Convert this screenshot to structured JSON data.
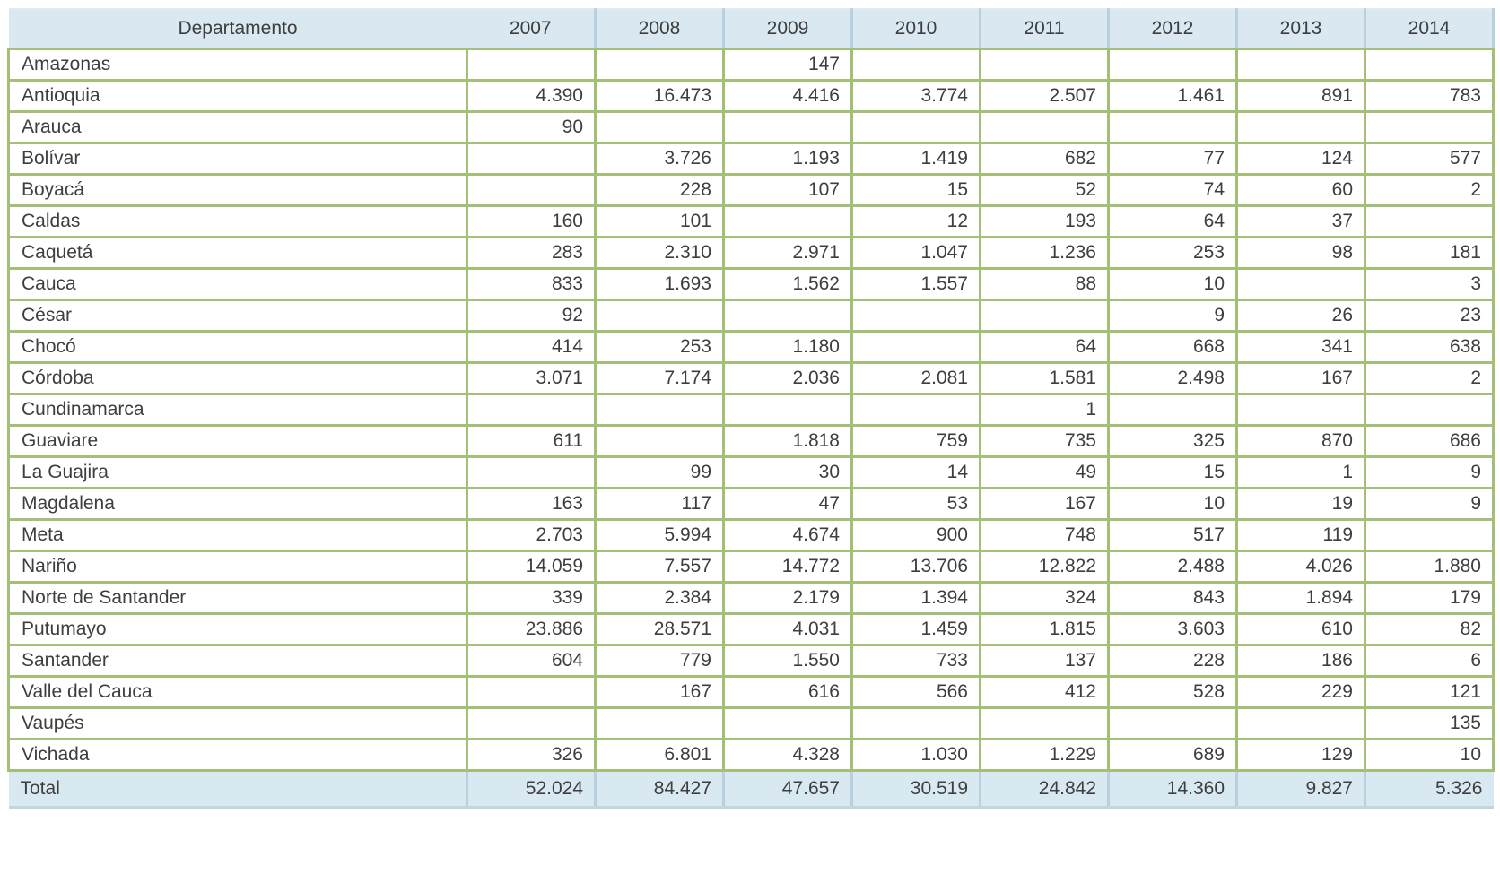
{
  "table": {
    "columns": [
      "Departamento",
      "2007",
      "2008",
      "2009",
      "2010",
      "2011",
      "2012",
      "2013",
      "2014"
    ],
    "rows": [
      {
        "name": "Amazonas",
        "values": [
          "",
          "",
          "147",
          "",
          "",
          "",
          "",
          ""
        ]
      },
      {
        "name": "Antioquia",
        "values": [
          "4.390",
          "16.473",
          "4.416",
          "3.774",
          "2.507",
          "1.461",
          "891",
          "783"
        ]
      },
      {
        "name": "Arauca",
        "values": [
          "90",
          "",
          "",
          "",
          "",
          "",
          "",
          ""
        ]
      },
      {
        "name": "Bolívar",
        "values": [
          "",
          "3.726",
          "1.193",
          "1.419",
          "682",
          "77",
          "124",
          "577"
        ]
      },
      {
        "name": "Boyacá",
        "values": [
          "",
          "228",
          "107",
          "15",
          "52",
          "74",
          "60",
          "2"
        ]
      },
      {
        "name": "Caldas",
        "values": [
          "160",
          "101",
          "",
          "12",
          "193",
          "64",
          "37",
          ""
        ]
      },
      {
        "name": "Caquetá",
        "values": [
          "283",
          "2.310",
          "2.971",
          "1.047",
          "1.236",
          "253",
          "98",
          "181"
        ]
      },
      {
        "name": "Cauca",
        "values": [
          "833",
          "1.693",
          "1.562",
          "1.557",
          "88",
          "10",
          "",
          "3"
        ]
      },
      {
        "name": "César",
        "values": [
          "92",
          "",
          "",
          "",
          "",
          "9",
          "26",
          "23"
        ]
      },
      {
        "name": "Chocó",
        "values": [
          "414",
          "253",
          "1.180",
          "",
          "64",
          "668",
          "341",
          "638"
        ]
      },
      {
        "name": "Córdoba",
        "values": [
          "3.071",
          "7.174",
          "2.036",
          "2.081",
          "1.581",
          "2.498",
          "167",
          "2"
        ]
      },
      {
        "name": "Cundinamarca",
        "values": [
          "",
          "",
          "",
          "",
          "1",
          "",
          "",
          ""
        ]
      },
      {
        "name": "Guaviare",
        "values": [
          "611",
          "",
          "1.818",
          "759",
          "735",
          "325",
          "870",
          "686"
        ]
      },
      {
        "name": "La Guajira",
        "values": [
          "",
          "99",
          "30",
          "14",
          "49",
          "15",
          "1",
          "9"
        ]
      },
      {
        "name": "Magdalena",
        "values": [
          "163",
          "117",
          "47",
          "53",
          "167",
          "10",
          "19",
          "9"
        ]
      },
      {
        "name": "Meta",
        "values": [
          "2.703",
          "5.994",
          "4.674",
          "900",
          "748",
          "517",
          "119",
          ""
        ]
      },
      {
        "name": "Nariño",
        "values": [
          "14.059",
          "7.557",
          "14.772",
          "13.706",
          "12.822",
          "2.488",
          "4.026",
          "1.880"
        ]
      },
      {
        "name": "Norte de Santander",
        "values": [
          "339",
          "2.384",
          "2.179",
          "1.394",
          "324",
          "843",
          "1.894",
          "179"
        ]
      },
      {
        "name": "Putumayo",
        "values": [
          "23.886",
          "28.571",
          "4.031",
          "1.459",
          "1.815",
          "3.603",
          "610",
          "82"
        ]
      },
      {
        "name": "Santander",
        "values": [
          "604",
          "779",
          "1.550",
          "733",
          "137",
          "228",
          "186",
          "6"
        ]
      },
      {
        "name": "Valle del Cauca",
        "values": [
          "",
          "167",
          "616",
          "566",
          "412",
          "528",
          "229",
          "121"
        ]
      },
      {
        "name": "Vaupés",
        "values": [
          "",
          "",
          "",
          "",
          "",
          "",
          "",
          "135"
        ]
      },
      {
        "name": "Vichada",
        "values": [
          "326",
          "6.801",
          "4.328",
          "1.030",
          "1.229",
          "689",
          "129",
          "10"
        ]
      }
    ],
    "total": {
      "label": "Total",
      "values": [
        "52.024",
        "84.427",
        "47.657",
        "30.519",
        "24.842",
        "14.360",
        "9.827",
        "5.326"
      ]
    }
  },
  "colors": {
    "header_bg": "#d9e8f1",
    "total_bg": "#d8e9f2",
    "border_green": "#a3c076",
    "divider_blue": "#b9d1de",
    "text": "#3e3e3e"
  }
}
